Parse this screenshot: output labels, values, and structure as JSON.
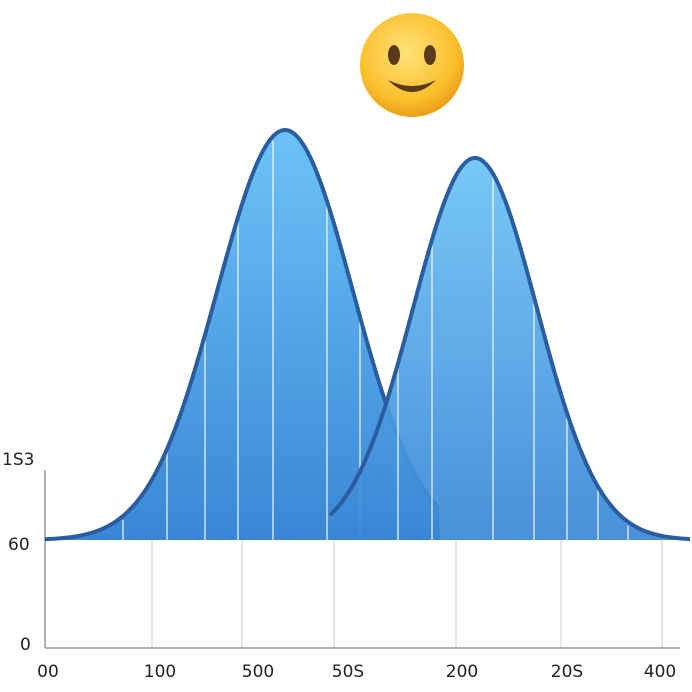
{
  "y_axis": {
    "labels": [
      "1S3",
      "60",
      "0"
    ]
  },
  "x_axis": {
    "labels": [
      "00",
      "100",
      "500",
      "50S",
      "200",
      "20S",
      "400"
    ]
  }
}
